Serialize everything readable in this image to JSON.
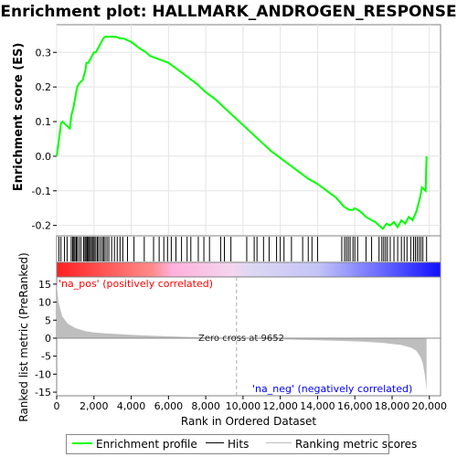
{
  "chart_data": {
    "type": "line",
    "title": "Enrichment plot: HALLMARK_ANDROGEN_RESPONSE",
    "top_panel": {
      "ylabel": "Enrichment score (ES)",
      "ylim": [
        -0.23,
        0.38
      ],
      "yticks": [
        "-0.2",
        "-0.1",
        "0.0",
        "0.1",
        "0.2",
        "0.3"
      ],
      "ytick_values": [
        -0.2,
        -0.1,
        0.0,
        0.1,
        0.2,
        0.3
      ],
      "series": [
        {
          "name": "Enrichment profile",
          "color": "#00ff00",
          "x": [
            0,
            80,
            150,
            230,
            320,
            500,
            700,
            800,
            900,
            1000,
            1100,
            1200,
            1400,
            1550,
            1600,
            1700,
            1800,
            1900,
            2000,
            2100,
            2200,
            2300,
            2400,
            2500,
            2600,
            2700,
            2800,
            3000,
            3200,
            3400,
            3600,
            4000,
            4500,
            4800,
            5000,
            5500,
            6000,
            6500,
            7000,
            7500,
            8000,
            8500,
            9000,
            9500,
            10000,
            10500,
            11000,
            11500,
            12000,
            12500,
            13000,
            13500,
            14000,
            14500,
            15000,
            15400,
            15700,
            15900,
            16000,
            16300,
            16600,
            16900,
            17100,
            17300,
            17500,
            17700,
            17900,
            18100,
            18300,
            18500,
            18700,
            18900,
            19100,
            19300,
            19500,
            19600,
            19800,
            19850
          ],
          "y": [
            0.0,
            0.03,
            0.06,
            0.095,
            0.1,
            0.09,
            0.08,
            0.12,
            0.14,
            0.17,
            0.2,
            0.21,
            0.22,
            0.25,
            0.27,
            0.27,
            0.28,
            0.29,
            0.3,
            0.3,
            0.31,
            0.32,
            0.33,
            0.34,
            0.345,
            0.345,
            0.345,
            0.345,
            0.345,
            0.34,
            0.34,
            0.33,
            0.31,
            0.3,
            0.29,
            0.28,
            0.27,
            0.25,
            0.23,
            0.21,
            0.185,
            0.165,
            0.14,
            0.115,
            0.09,
            0.065,
            0.04,
            0.015,
            -0.005,
            -0.025,
            -0.045,
            -0.065,
            -0.08,
            -0.1,
            -0.12,
            -0.145,
            -0.155,
            -0.155,
            -0.15,
            -0.16,
            -0.175,
            -0.185,
            -0.19,
            -0.2,
            -0.21,
            -0.195,
            -0.2,
            -0.19,
            -0.205,
            -0.185,
            -0.195,
            -0.175,
            -0.185,
            -0.16,
            -0.12,
            -0.09,
            -0.1,
            0.0
          ]
        }
      ]
    },
    "hits": [
      120,
      230,
      420,
      560,
      780,
      860,
      920,
      980,
      1050,
      1100,
      1200,
      1300,
      1450,
      1520,
      1580,
      1640,
      1700,
      1760,
      1820,
      1900,
      1960,
      2020,
      2100,
      2180,
      2250,
      2350,
      2450,
      2520,
      2600,
      2700,
      2800,
      2950,
      3100,
      3250,
      3400,
      3550,
      3800,
      4150,
      4700,
      5200,
      5500,
      5750,
      5950,
      6150,
      6400,
      6700,
      7000,
      7200,
      7600,
      7900,
      8200,
      8800,
      9000,
      9350,
      10200,
      10600,
      10750,
      11100,
      11400,
      11800,
      12000,
      12200,
      12600,
      13200,
      13500,
      13700,
      14000,
      15300,
      15450,
      15550,
      15650,
      15750,
      15900,
      16000,
      16150,
      16600,
      16900,
      17300,
      17450,
      17550,
      17650,
      17750,
      17900,
      18100,
      18300,
      18500,
      18650,
      18800,
      19000,
      19150,
      19250,
      19350,
      19450,
      19550,
      19650,
      19850
    ],
    "ranked_metric": {
      "ylabel": "Ranked list metric (PreRanked)",
      "ylim": [
        -16,
        17
      ],
      "yticks": [
        "-15",
        "-10",
        "-5",
        "0",
        "5",
        "10",
        "15"
      ],
      "ytick_values": [
        -15,
        -10,
        -5,
        0,
        5,
        10,
        15
      ],
      "x": [
        0,
        100,
        300,
        600,
        1000,
        1500,
        2000,
        3000,
        4000,
        5000,
        6000,
        7000,
        8000,
        9000,
        9652,
        10500,
        12000,
        14000,
        15500,
        16500,
        17500,
        18500,
        19000,
        19300,
        19500,
        19650,
        19750,
        19850
      ],
      "y": [
        15,
        10,
        6,
        4,
        2.8,
        2,
        1.6,
        1.2,
        0.9,
        0.7,
        0.5,
        0.35,
        0.2,
        0.08,
        0,
        -0.15,
        -0.35,
        -0.6,
        -0.8,
        -1.0,
        -1.3,
        -1.9,
        -2.6,
        -3.5,
        -5,
        -7,
        -10,
        -14.5
      ],
      "fill_color": "#bebebe",
      "zero_cross_label": "Zero cross at 9652",
      "zero_cross": 9652,
      "pos_label": "'na_pos' (positively correlated)",
      "neg_label": "'na_neg' (negatively correlated)"
    },
    "xlabel": "Rank in Ordered Dataset",
    "xlim": [
      0,
      20600
    ],
    "xticks": [
      "0",
      "2,000",
      "4,000",
      "6,000",
      "8,000",
      "10,000",
      "12,000",
      "14,000",
      "16,000",
      "18,000",
      "20,000"
    ],
    "xtick_values": [
      0,
      2000,
      4000,
      6000,
      8000,
      10000,
      12000,
      14000,
      16000,
      18000,
      20000
    ],
    "legend": {
      "entries": [
        "Enrichment profile",
        "Hits",
        "Ranking metric scores"
      ]
    },
    "colors": {
      "profile": "#00ff00",
      "hit": "#000000",
      "pos_text": "#ff0000",
      "neg_text": "#0000ff",
      "metric_fill": "#bebebe"
    }
  }
}
